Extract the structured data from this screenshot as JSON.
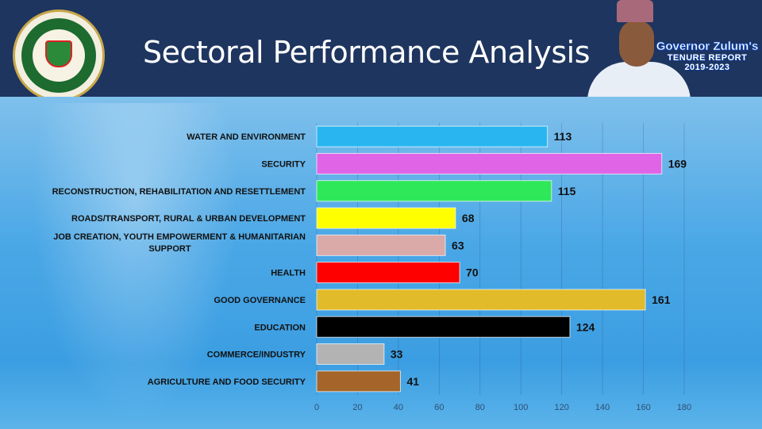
{
  "header": {
    "title": "Sectoral Performance Analysis",
    "seal_text": "BORNO STATE GOVERNMENT",
    "report_line1": "Governor Zulum's",
    "report_line2": "TENURE REPORT",
    "report_line3": "2019-2023"
  },
  "chart_data": {
    "type": "bar",
    "orientation": "horizontal",
    "title": "Sectoral Performance Analysis",
    "categories": [
      "WATER AND ENVIRONMENT",
      "SECURITY",
      "RECONSTRUCTION, REHABILITATION AND RESETTLEMENT",
      "ROADS/TRANSPORT, RURAL & URBAN DEVELOPMENT",
      "JOB CREATION, YOUTH EMPOWERMENT & HUMANITARIAN|SUPPORT",
      "HEALTH",
      "GOOD GOVERNANCE",
      "EDUCATION",
      "COMMERCE/INDUSTRY",
      "AGRICULTURE AND FOOD SECURITY"
    ],
    "values": [
      113,
      169,
      115,
      68,
      63,
      70,
      161,
      124,
      33,
      41
    ],
    "colors": [
      "#29b6f0",
      "#e064e6",
      "#2ee85a",
      "#ffff00",
      "#d9aaa8",
      "#ff0000",
      "#e1bb2a",
      "#000000",
      "#b3b3b3",
      "#a5652a"
    ],
    "xlim": [
      0,
      180
    ],
    "xticks": [
      0,
      20,
      40,
      60,
      80,
      100,
      120,
      140,
      160,
      180
    ],
    "grid": true,
    "legend": "none",
    "xlabel": "",
    "ylabel": ""
  }
}
